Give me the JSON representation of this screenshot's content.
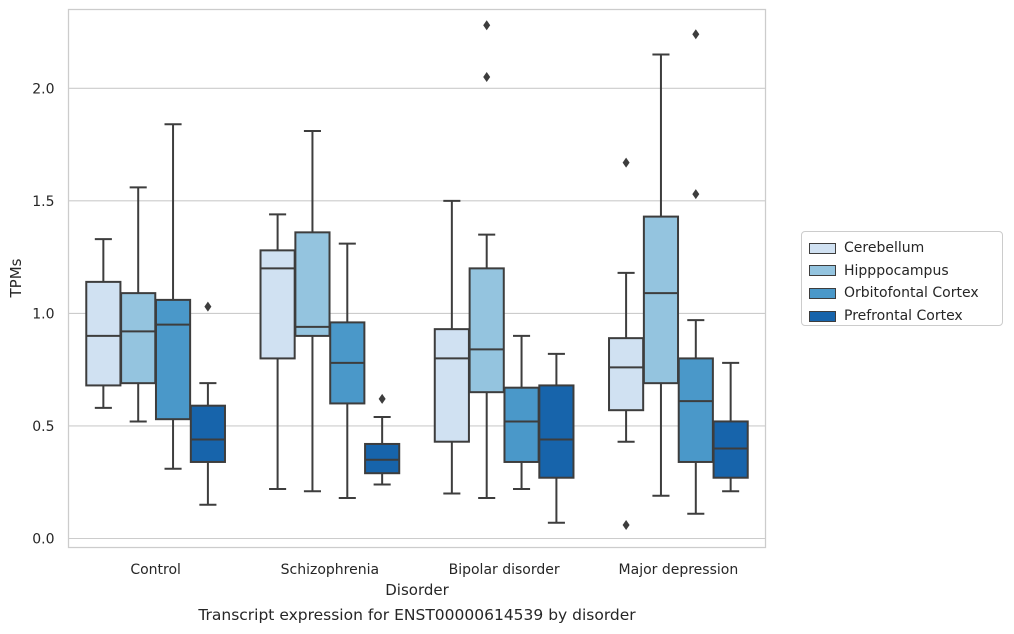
{
  "caption": "Transcript expression for ENST00000614539 by disorder",
  "chart_data": {
    "type": "box",
    "title": "",
    "xlabel": "Disorder",
    "ylabel": "TPMs",
    "ylim": [
      -0.04,
      2.35
    ],
    "yticks": [
      "0.0",
      "0.5",
      "1.0",
      "1.5",
      "2.0"
    ],
    "ytick_values": [
      0,
      0.5,
      1.0,
      1.5,
      2.0
    ],
    "grid": "horizontal",
    "legend_position": "right",
    "categories": [
      "Control",
      "Schizophrenia",
      "Bipolar disorder",
      "Major depression"
    ],
    "series": [
      {
        "name": "Cerebellum",
        "color": "#d0e1f2",
        "boxes": [
          {
            "whislo": 0.58,
            "q1": 0.68,
            "med": 0.9,
            "q3": 1.14,
            "whishi": 1.33,
            "fliers": []
          },
          {
            "whislo": 0.22,
            "q1": 0.8,
            "med": 1.2,
            "q3": 1.28,
            "whishi": 1.44,
            "fliers": []
          },
          {
            "whislo": 0.2,
            "q1": 0.43,
            "med": 0.8,
            "q3": 0.93,
            "whishi": 1.5,
            "fliers": []
          },
          {
            "whislo": 0.43,
            "q1": 0.57,
            "med": 0.76,
            "q3": 0.89,
            "whishi": 1.18,
            "fliers": [
              1.67,
              0.06
            ]
          }
        ]
      },
      {
        "name": "Hipppocampus",
        "color": "#94c4df",
        "boxes": [
          {
            "whislo": 0.52,
            "q1": 0.69,
            "med": 0.92,
            "q3": 1.09,
            "whishi": 1.56,
            "fliers": []
          },
          {
            "whislo": 0.21,
            "q1": 0.9,
            "med": 0.94,
            "q3": 1.36,
            "whishi": 1.81,
            "fliers": []
          },
          {
            "whislo": 0.18,
            "q1": 0.65,
            "med": 0.84,
            "q3": 1.2,
            "whishi": 1.35,
            "fliers": [
              2.28,
              2.05
            ]
          },
          {
            "whislo": 0.19,
            "q1": 0.69,
            "med": 1.09,
            "q3": 1.43,
            "whishi": 2.15,
            "fliers": []
          }
        ]
      },
      {
        "name": "Orbitofontal Cortex",
        "color": "#4a98c9",
        "boxes": [
          {
            "whislo": 0.31,
            "q1": 0.53,
            "med": 0.95,
            "q3": 1.06,
            "whishi": 1.84,
            "fliers": []
          },
          {
            "whislo": 0.18,
            "q1": 0.6,
            "med": 0.78,
            "q3": 0.96,
            "whishi": 1.31,
            "fliers": []
          },
          {
            "whislo": 0.22,
            "q1": 0.34,
            "med": 0.52,
            "q3": 0.67,
            "whishi": 0.9,
            "fliers": []
          },
          {
            "whislo": 0.11,
            "q1": 0.34,
            "med": 0.61,
            "q3": 0.8,
            "whishi": 0.97,
            "fliers": [
              2.24,
              1.53
            ]
          }
        ]
      },
      {
        "name": "Prefrontal Cortex",
        "color": "#1764ab",
        "boxes": [
          {
            "whislo": 0.15,
            "q1": 0.34,
            "med": 0.44,
            "q3": 0.59,
            "whishi": 0.69,
            "fliers": [
              1.03
            ]
          },
          {
            "whislo": 0.24,
            "q1": 0.29,
            "med": 0.35,
            "q3": 0.42,
            "whishi": 0.54,
            "fliers": [
              0.62
            ]
          },
          {
            "whislo": 0.07,
            "q1": 0.27,
            "med": 0.44,
            "q3": 0.68,
            "whishi": 0.82,
            "fliers": []
          },
          {
            "whislo": 0.21,
            "q1": 0.27,
            "med": 0.4,
            "q3": 0.52,
            "whishi": 0.78,
            "fliers": []
          }
        ]
      }
    ]
  }
}
